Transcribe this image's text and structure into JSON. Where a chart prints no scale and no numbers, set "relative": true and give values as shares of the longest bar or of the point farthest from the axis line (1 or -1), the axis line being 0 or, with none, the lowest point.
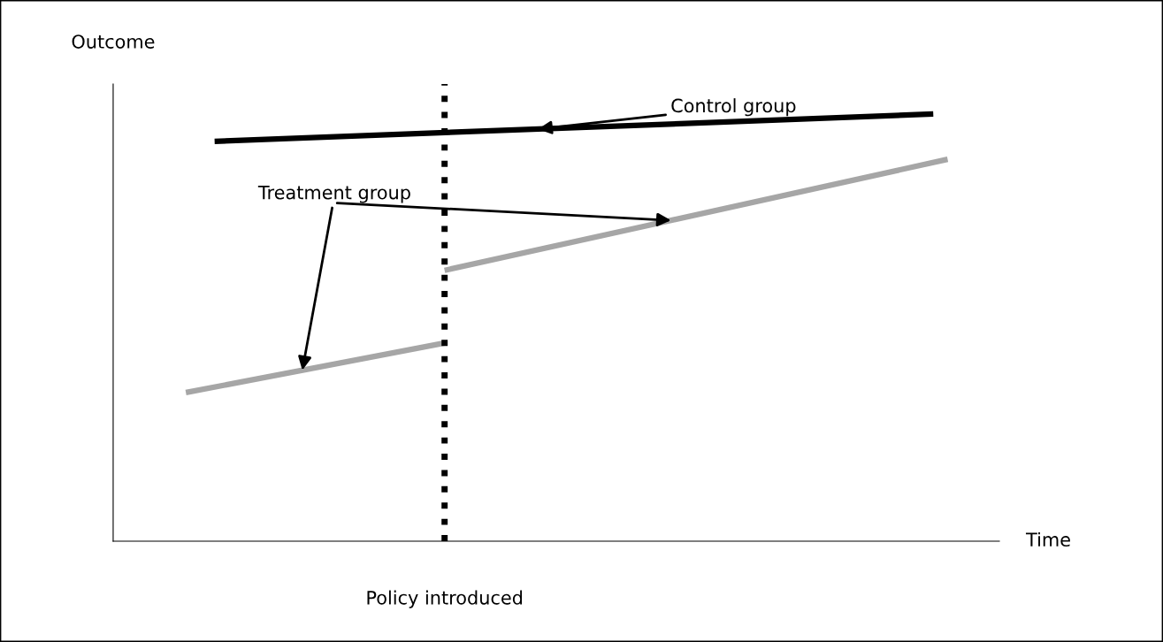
{
  "chart_data": {
    "type": "line",
    "relative": true,
    "xlabel": "Time",
    "ylabel": "Outcome",
    "annotations": [
      "Policy introduced"
    ],
    "marker": "none",
    "line_style": "solid",
    "categories": [
      null,
      null,
      null,
      null,
      null,
      null,
      null,
      null,
      null,
      null,
      null,
      null,
      null,
      null,
      null,
      null,
      null,
      null,
      null,
      null,
      null,
      null,
      null,
      null,
      null,
      null,
      null,
      null,
      null,
      null,
      null,
      null,
      null,
      null,
      null,
      null,
      null,
      null,
      null,
      null,
      null,
      null,
      null,
      null,
      null,
      null,
      null,
      null,
      null,
      null,
      null,
      null,
      null,
      null
    ],
    "series": [
      {
        "name": "Control group",
        "color": "#000000",
        "values": [
          null,
          null,
          0.936,
          null,
          null,
          null,
          null,
          null,
          null,
          null,
          null,
          null,
          null,
          null,
          null,
          null,
          null,
          null,
          null,
          null,
          null,
          null,
          null,
          null,
          null,
          null,
          null,
          null,
          null,
          null,
          null,
          null,
          null,
          null,
          null,
          null,
          null,
          null,
          null,
          null,
          null,
          null,
          null,
          null,
          null,
          null,
          null,
          null,
          null,
          null,
          null,
          null,
          1.0,
          null
        ]
      },
      {
        "name": "Treatment group",
        "color": "#a6a6a6",
        "values": [
          0.348,
          null,
          null,
          null,
          null,
          null,
          null,
          null,
          null,
          null,
          null,
          null,
          null,
          null,
          null,
          null,
          null,
          null,
          0.464,
          null,
          null,
          null,
          null,
          null,
          null,
          null,
          null,
          null,
          null,
          null,
          null,
          null,
          null,
          null,
          null,
          null,
          null,
          null,
          null,
          null,
          null,
          null,
          null,
          null,
          null,
          null,
          null,
          null,
          null,
          null,
          null,
          null,
          null,
          null
        ]
      },
      {
        "color": "#a6a6a6",
        "values": [
          null,
          null,
          null,
          null,
          null,
          null,
          null,
          null,
          null,
          null,
          null,
          null,
          null,
          null,
          null,
          null,
          null,
          null,
          0.634,
          null,
          null,
          null,
          null,
          null,
          null,
          null,
          null,
          null,
          null,
          null,
          null,
          null,
          null,
          null,
          null,
          null,
          null,
          null,
          null,
          null,
          null,
          null,
          null,
          null,
          null,
          null,
          null,
          null,
          null,
          null,
          null,
          null,
          null,
          0.894
        ]
      }
    ]
  }
}
